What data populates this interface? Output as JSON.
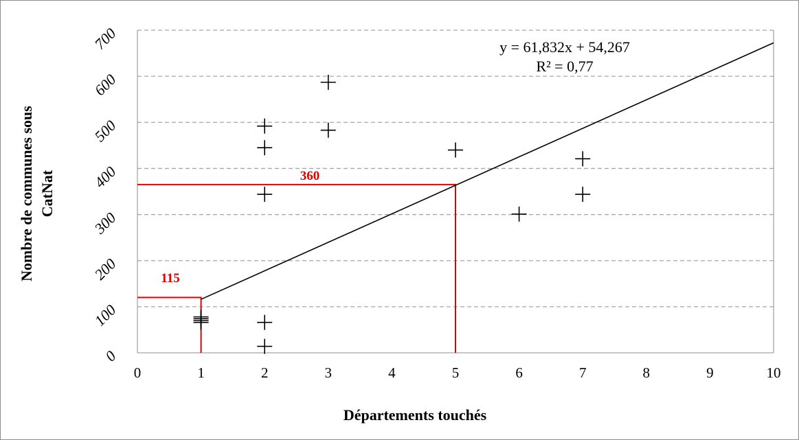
{
  "chart_data": {
    "type": "scatter",
    "title": "",
    "xlabel": "Départements touchés",
    "ylabel_line1": "Nombre  de communes sous",
    "ylabel_line2": "CatNat",
    "xlim": [
      0,
      10
    ],
    "ylim": [
      0,
      700
    ],
    "x_ticks": [
      "0",
      "1",
      "2",
      "3",
      "4",
      "5",
      "6",
      "7",
      "8",
      "9",
      "10"
    ],
    "y_ticks": [
      "0",
      "100",
      "200",
      "300",
      "400",
      "500",
      "600",
      "700"
    ],
    "grid": "horizontal dashed",
    "marker": "plus",
    "points": [
      {
        "x": 1,
        "y": 66
      },
      {
        "x": 1,
        "y": 70
      },
      {
        "x": 1,
        "y": 74
      },
      {
        "x": 1,
        "y": 78
      },
      {
        "x": 2,
        "y": 14
      },
      {
        "x": 2,
        "y": 66
      },
      {
        "x": 2,
        "y": 344
      },
      {
        "x": 2,
        "y": 445
      },
      {
        "x": 2,
        "y": 492
      },
      {
        "x": 3,
        "y": 483
      },
      {
        "x": 3,
        "y": 587
      },
      {
        "x": 5,
        "y": 440
      },
      {
        "x": 6,
        "y": 301
      },
      {
        "x": 7,
        "y": 344
      },
      {
        "x": 7,
        "y": 421
      }
    ],
    "trendline": {
      "slope": 61.832,
      "intercept": 54.267,
      "x_range": [
        1,
        10
      ],
      "equation": "y = 61,832x + 54,267",
      "r2": "R² = 0,77"
    },
    "annotations": [
      {
        "label": "115",
        "x": 1,
        "y": 120,
        "color": "#e00000"
      },
      {
        "label": "360",
        "x": 5,
        "y": 365,
        "color": "#e00000"
      }
    ],
    "colors": {
      "marker": "#000000",
      "trendline": "#000000",
      "annotation": "#e00000",
      "grid": "#a6a6a6"
    }
  }
}
